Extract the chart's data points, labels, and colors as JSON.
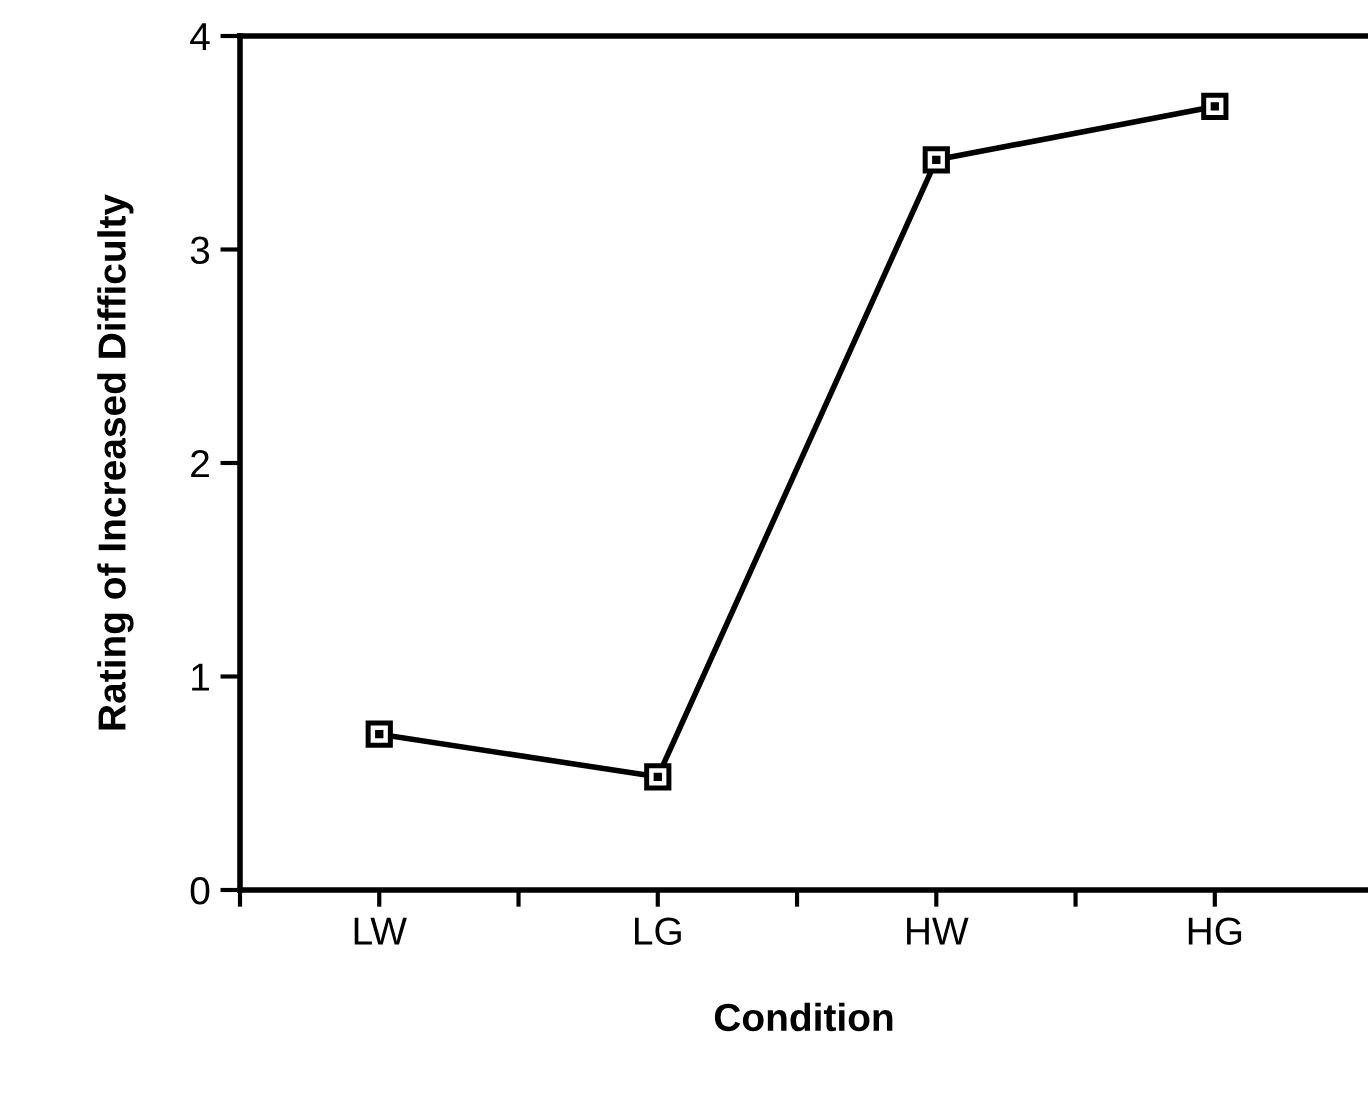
{
  "chart_data": {
    "type": "line",
    "xlabel": "Condition",
    "ylabel": "Rating of Increased Difficulty",
    "categories": [
      "LW",
      "LG",
      "HW",
      "HG"
    ],
    "values": [
      0.73,
      0.53,
      3.42,
      3.67
    ],
    "color": "#000000",
    "marker": "square",
    "line_style": "solid",
    "ylim": [
      0,
      4
    ],
    "yticks": [
      0,
      1,
      2,
      3,
      4
    ],
    "grid": false,
    "legend": false
  }
}
